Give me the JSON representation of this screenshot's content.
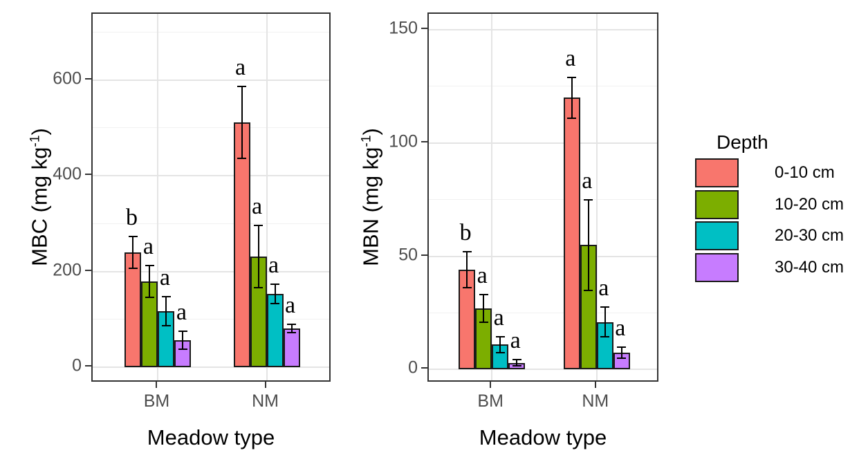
{
  "figure": {
    "background": "#ffffff",
    "axis_text_color": "#4d4d4d",
    "axis_title_color": "#000000",
    "panel_border_color": "#333333",
    "gridline_major_color": "#e4e4e4",
    "gridline_minor_color": "#f1f1f1"
  },
  "legend": {
    "title": "Depth",
    "entries": [
      {
        "label": "0-10 cm",
        "color": "#F8766D"
      },
      {
        "label": "10-20 cm",
        "color": "#7CAE00"
      },
      {
        "label": "20-30 cm",
        "color": "#00BFC4"
      },
      {
        "label": "30-40 cm",
        "color": "#C77CFF"
      }
    ]
  },
  "chart_data": [
    {
      "type": "bar",
      "title": "",
      "ylabel": "MBC (mg kg⁻¹)",
      "ylabel_parts": {
        "pre": "MBC (mg kg",
        "sup": "-1",
        "post": ")"
      },
      "xlabel": "Meadow type",
      "categories": [
        "BM",
        "NM"
      ],
      "yticks": [
        0,
        200,
        400,
        600
      ],
      "minor_yticks": [
        100,
        300,
        500,
        700
      ],
      "ylim": [
        -33,
        738
      ],
      "grid": true,
      "legend_position": "right",
      "series": [
        {
          "name": "0-10 cm",
          "color": "#F8766D",
          "values": [
            240,
            511
          ],
          "errors": [
            33,
            75
          ],
          "letters": [
            "b",
            "a"
          ]
        },
        {
          "name": "10-20 cm",
          "color": "#7CAE00",
          "values": [
            179,
            231
          ],
          "errors": [
            33,
            65
          ],
          "letters": [
            "a",
            "a"
          ]
        },
        {
          "name": "20-30 cm",
          "color": "#00BFC4",
          "values": [
            117,
            153
          ],
          "errors": [
            30,
            20
          ],
          "letters": [
            "a",
            "a"
          ]
        },
        {
          "name": "30-40 cm",
          "color": "#C77CFF",
          "values": [
            57,
            81
          ],
          "errors": [
            19,
            9
          ],
          "letters": [
            "a",
            "a"
          ]
        }
      ]
    },
    {
      "type": "bar",
      "title": "",
      "ylabel": "MBN (mg kg⁻¹)",
      "ylabel_parts": {
        "pre": "MBN (mg kg",
        "sup": "-1",
        "post": ")"
      },
      "xlabel": "Meadow type",
      "categories": [
        "BM",
        "NM"
      ],
      "yticks": [
        0,
        50,
        100,
        150
      ],
      "minor_yticks": [
        25,
        75,
        125
      ],
      "ylim": [
        -6,
        157
      ],
      "grid": true,
      "legend_position": "right",
      "series": [
        {
          "name": "0-10 cm",
          "color": "#F8766D",
          "values": [
            44,
            120
          ],
          "errors": [
            8,
            9
          ],
          "letters": [
            "b",
            "a"
          ]
        },
        {
          "name": "10-20 cm",
          "color": "#7CAE00",
          "values": [
            27,
            55
          ],
          "errors": [
            6,
            20
          ],
          "letters": [
            "a",
            "a"
          ]
        },
        {
          "name": "20-30 cm",
          "color": "#00BFC4",
          "values": [
            11,
            21
          ],
          "errors": [
            3.5,
            6.5
          ],
          "letters": [
            "a",
            "a"
          ]
        },
        {
          "name": "30-40 cm",
          "color": "#C77CFF",
          "values": [
            3,
            7.5
          ],
          "errors": [
            1.5,
            2.5
          ],
          "letters": [
            "a",
            "a"
          ]
        }
      ]
    }
  ]
}
